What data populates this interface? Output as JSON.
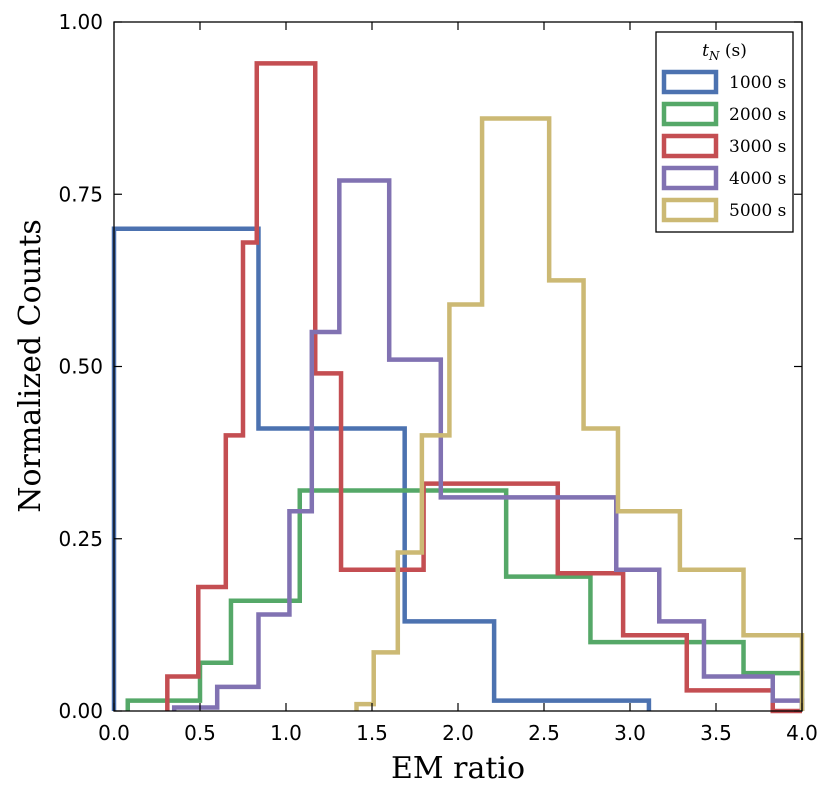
{
  "chart_data": {
    "type": "histogram",
    "title": "",
    "xlabel": "EM ratio",
    "ylabel": "Normalized Counts",
    "xlim": [
      0.0,
      4.0
    ],
    "ylim": [
      0.0,
      1.0
    ],
    "xticks": [
      "0.0",
      "0.5",
      "1.0",
      "1.5",
      "2.0",
      "2.5",
      "3.0",
      "3.5",
      "4.0"
    ],
    "yticks": [
      "0.00",
      "0.25",
      "0.50",
      "0.75",
      "1.00"
    ],
    "legend": {
      "title_var": "t",
      "title_sub": "N",
      "title_unit": " (s)",
      "placement": "top-right"
    },
    "grid": false,
    "series": [
      {
        "name": "1000 s",
        "color": "#4c72b0",
        "edges": [
          0.0,
          0.05,
          0.11,
          0.84,
          1.69,
          2.21,
          3.11
        ],
        "values": [
          0.7,
          0.7,
          0.7,
          0.41,
          0.13,
          0.015
        ]
      },
      {
        "name": "2000 s",
        "color": "#55a868",
        "edges": [
          0.08,
          0.5,
          0.68,
          0.88,
          1.08,
          2.28,
          2.77,
          3.66,
          4.0
        ],
        "values": [
          0.015,
          0.07,
          0.16,
          0.16,
          0.32,
          0.195,
          0.1,
          0.055
        ]
      },
      {
        "name": "3000 s",
        "color": "#c44e52",
        "edges": [
          0.31,
          0.49,
          0.65,
          0.75,
          0.83,
          0.94,
          1.17,
          1.32,
          1.8,
          2.58,
          2.96,
          3.33,
          3.83,
          4.0
        ],
        "values": [
          0.05,
          0.18,
          0.4,
          0.68,
          0.94,
          0.94,
          0.49,
          0.205,
          0.33,
          0.2,
          0.11,
          0.03,
          0.0
        ]
      },
      {
        "name": "4000 s",
        "color": "#8172b2",
        "edges": [
          0.35,
          0.6,
          0.84,
          1.02,
          1.15,
          1.31,
          1.6,
          1.9,
          2.02,
          2.92,
          3.17,
          3.43,
          3.83,
          4.0
        ],
        "values": [
          0.005,
          0.035,
          0.14,
          0.29,
          0.55,
          0.77,
          0.51,
          0.31,
          0.31,
          0.205,
          0.13,
          0.05,
          0.015
        ]
      },
      {
        "name": "5000 s",
        "color": "#ccb974",
        "edges": [
          1.41,
          1.51,
          1.65,
          1.79,
          1.95,
          2.14,
          2.53,
          2.73,
          2.93,
          3.29,
          3.66,
          4.0
        ],
        "values": [
          0.01,
          0.085,
          0.23,
          0.4,
          0.59,
          0.86,
          0.625,
          0.41,
          0.29,
          0.205,
          0.11
        ]
      }
    ]
  }
}
